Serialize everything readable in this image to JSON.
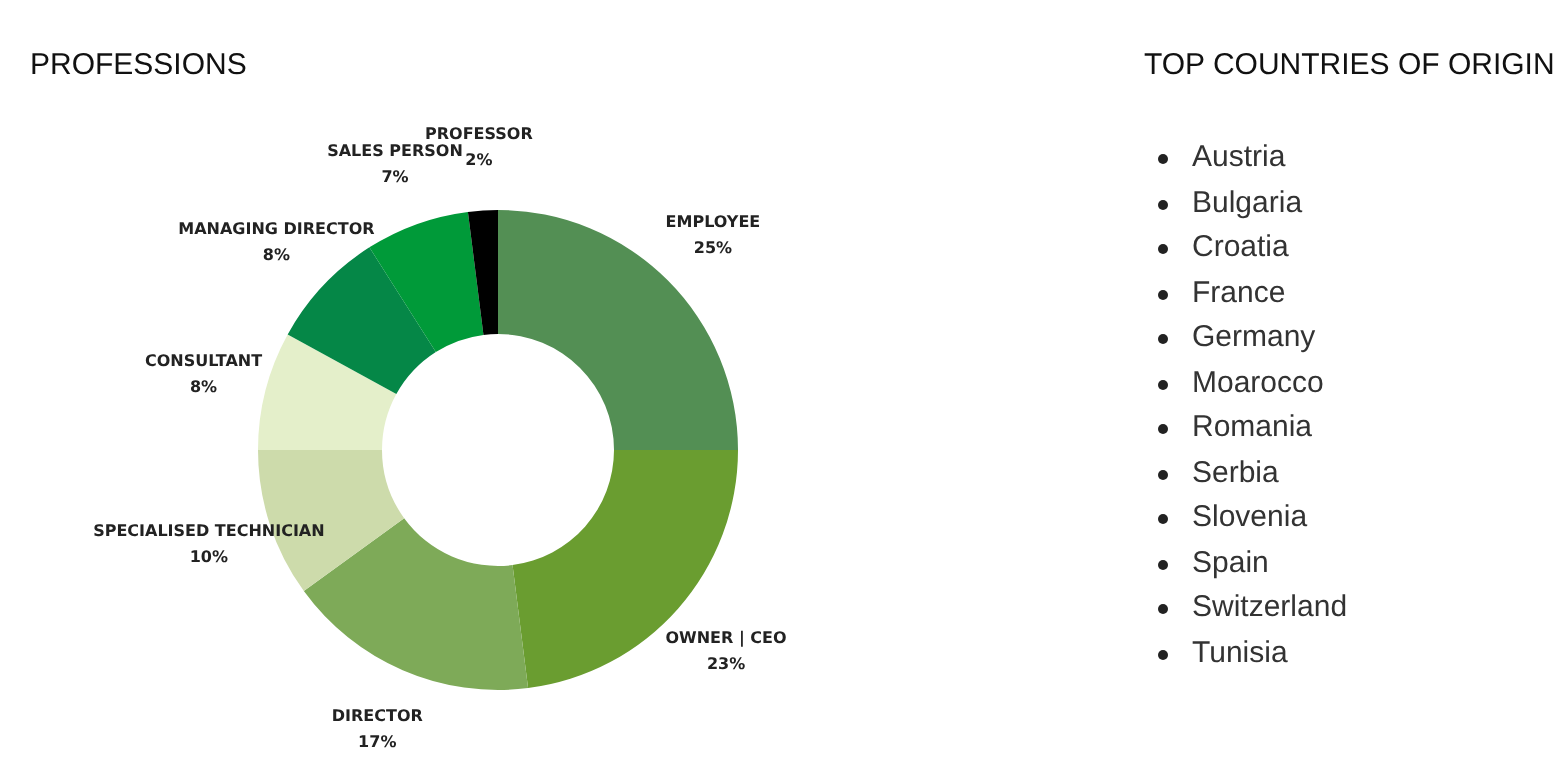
{
  "chart_data": [
    {
      "type": "donut",
      "title": "PROFESSIONS",
      "categories": [
        "EMPLOYEE",
        "OWNER | CEO",
        "DIRECTOR",
        "SPECIALISED TECHNICIAN",
        "CONSULTANT",
        "MANAGING DIRECTOR",
        "SALES PERSON",
        "PROFESSOR"
      ],
      "values": [
        25,
        23,
        17,
        10,
        8,
        8,
        7,
        2
      ],
      "value_labels": [
        "25%",
        "23%",
        "17%",
        "10%",
        "8%",
        "8%",
        "7%",
        "2%"
      ],
      "colors": [
        "#538f54",
        "#6a9d30",
        "#7eaa58",
        "#cddbab",
        "#e4efca",
        "#058747",
        "#009a39",
        "#000000"
      ],
      "legend": false
    },
    {
      "type": "other",
      "title": "TOP COUNTRIES OF ORIGIN",
      "annotations": [
        "Austria",
        "Bulgaria",
        "Croatia",
        "France",
        "Germany",
        "Moarocco",
        "Romania",
        "Serbia",
        "Slovenia",
        "Spain",
        "Switzerland",
        "Tunisia"
      ]
    }
  ]
}
